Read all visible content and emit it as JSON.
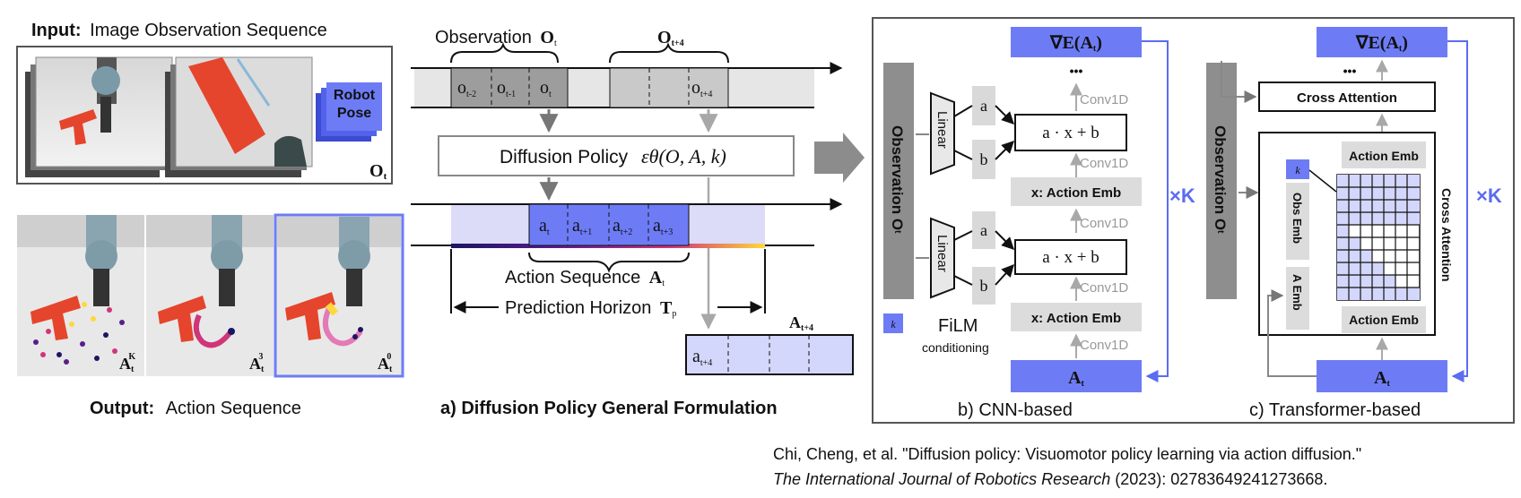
{
  "left_panel": {
    "input_prefix": "Input:",
    "input_title": "Image Observation Sequence",
    "robot_pose_line1": "Robot",
    "robot_pose_line2": "Pose",
    "obs_symbol": "O",
    "obs_sub": "t",
    "output_prefix": "Output:",
    "output_title": "Action Sequence",
    "frame_labels": [
      {
        "main": "A",
        "sub": "t",
        "sup": "K"
      },
      {
        "main": "A",
        "sub": "t",
        "sup": "3"
      },
      {
        "main": "A",
        "sub": "t",
        "sup": "0"
      }
    ]
  },
  "panel_a": {
    "observation_label": "Observation",
    "obs_symbol": "O",
    "obs_sub": "t",
    "obs_next_symbol": "O",
    "obs_next_sub": "t+4",
    "obs_cells": [
      {
        "main": "o",
        "sub": "t-2"
      },
      {
        "main": "o",
        "sub": "t-1"
      },
      {
        "main": "o",
        "sub": "t"
      }
    ],
    "obs_next_cell": {
      "main": "o",
      "sub": "t+4"
    },
    "policy_label": "Diffusion Policy",
    "policy_formula": "εθ(O, A, k)",
    "action_cells": [
      {
        "main": "a",
        "sub": "t"
      },
      {
        "main": "a",
        "sub": "t+1"
      },
      {
        "main": "a",
        "sub": "t+2"
      },
      {
        "main": "a",
        "sub": "t+3"
      }
    ],
    "action_seq_label": "Action Sequence",
    "action_seq_symbol": "A",
    "action_seq_sub": "t",
    "horizon_label": "Prediction Horizon",
    "horizon_symbol": "T",
    "horizon_sub": "p",
    "next_action_symbol": "A",
    "next_action_sub": "t+4",
    "next_action_cell": {
      "main": "a",
      "sub": "t+4"
    },
    "caption": "a) Diffusion Policy General Formulation"
  },
  "panel_b": {
    "grad_label": "∇E(A",
    "grad_sub": "t",
    "dots": "•••",
    "conv_label": "Conv1D",
    "linear_label": "Linear",
    "a_label": "a",
    "b_label": "b",
    "film_expr": "a · x + b",
    "action_emb": "x: Action Emb",
    "obs_vertical": "Observation O",
    "obs_vertical_sub": "t",
    "k_glyph": "k",
    "film_label": "FiLM",
    "conditioning_label": "conditioning",
    "at_label": "A",
    "at_sub": "t",
    "times_k": "×K",
    "caption": "b) CNN-based"
  },
  "panel_c": {
    "grad_label": "∇E(A",
    "grad_sub": "t",
    "dots": "•••",
    "cross_attention": "Cross Attention",
    "action_emb": "Action Emb",
    "obs_emb": "Obs Emb",
    "a_emb": "A Emb",
    "cross_attention_vertical": "Cross Attention",
    "obs_vertical": "Observation O",
    "obs_vertical_sub": "t",
    "k_glyph": "k",
    "at_label": "A",
    "at_sub": "t",
    "times_k": "×K",
    "caption": "c) Transformer-based"
  },
  "citation": {
    "line1": "Chi, Cheng, et al. \"Diffusion policy: Visuomotor policy learning via action diffusion.\"",
    "journal": "The International Journal of Robotics Research",
    "tail": " (2023): 02783649241273668."
  },
  "colors": {
    "accent_blue": "#6d7cf5",
    "light_blue": "#d3d7fb",
    "obs_gray": "#9a9a9a",
    "light_gray": "#e3e3e3",
    "robot_red": "#e5452c"
  }
}
